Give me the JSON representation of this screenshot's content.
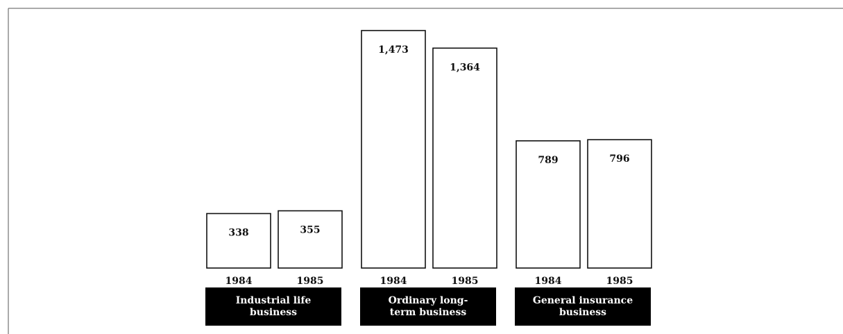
{
  "chart_data": {
    "type": "bar",
    "categories": [
      "Industrial life business",
      "Ordinary long-term business",
      "General insurance business"
    ],
    "series": [
      {
        "name": "1984",
        "color": "#ffffff",
        "values": [
          338,
          1473,
          789
        ],
        "value_labels": [
          "338",
          "1,473",
          "789"
        ]
      },
      {
        "name": "1985",
        "color": "#ffffff",
        "values": [
          355,
          1364,
          796
        ],
        "value_labels": [
          "355",
          "1,364",
          "796"
        ]
      }
    ]
  }
}
